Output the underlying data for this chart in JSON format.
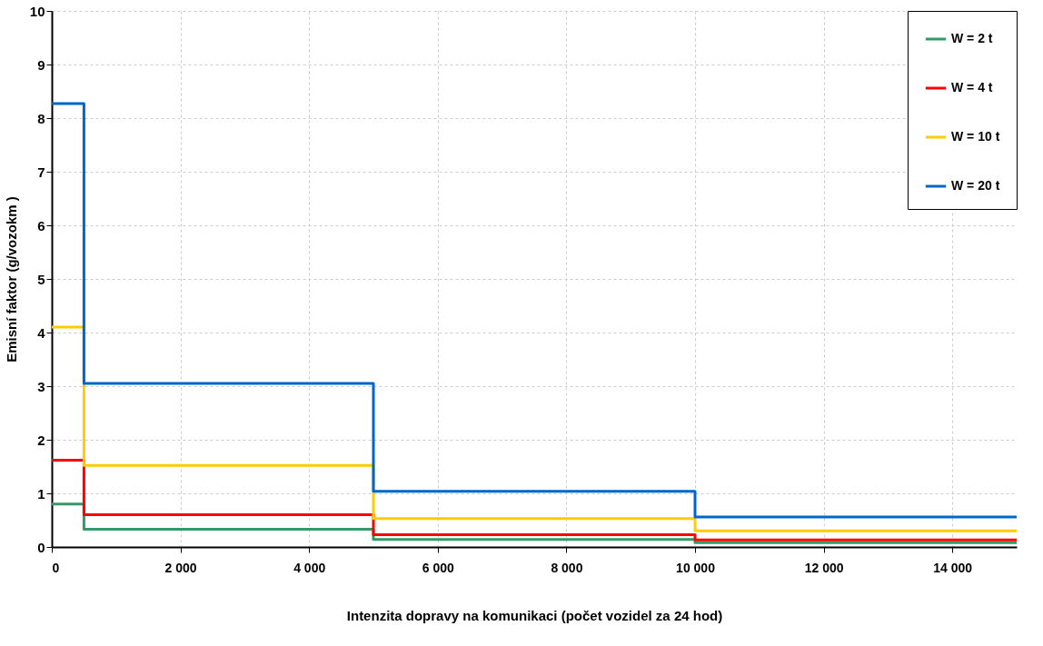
{
  "chart_data": {
    "type": "step",
    "xlabel": "Intenzita dopravy na komunikaci (počet vozidel za 24 hod)",
    "ylabel": "Emisní faktor (g/vozokm )",
    "x": [
      0,
      500,
      5000,
      10000,
      15000
    ],
    "series": [
      {
        "name": "W = 2 t",
        "color": "#339966",
        "values": [
          0.8,
          0.33,
          0.14,
          0.08,
          0.08
        ]
      },
      {
        "name": "W = 4 t",
        "color": "#ff0000",
        "values": [
          1.62,
          0.6,
          0.23,
          0.13,
          0.13
        ]
      },
      {
        "name": "W = 10 t",
        "color": "#ffcc00",
        "values": [
          4.1,
          1.52,
          0.53,
          0.3,
          0.3
        ]
      },
      {
        "name": "W = 20 t",
        "color": "#0066cc",
        "values": [
          8.27,
          3.05,
          1.04,
          0.56,
          0.56
        ]
      }
    ],
    "xlim": [
      0,
      15000
    ],
    "xticks": [
      0,
      {
        "value": 2000,
        "label": "2 000"
      },
      {
        "value": 4000,
        "label": "4 000"
      },
      {
        "value": 6000,
        "label": "6 000"
      },
      {
        "value": 8000,
        "label": "8 000"
      },
      {
        "value": 10000,
        "label": "10 000"
      },
      {
        "value": 12000,
        "label": "12 000"
      },
      {
        "value": 14000,
        "label": "14 000"
      }
    ],
    "ylim": [
      0,
      10
    ],
    "yticks": [
      0,
      1,
      2,
      3,
      4,
      5,
      6,
      7,
      8,
      9,
      10
    ],
    "grid": true,
    "legend": "top right",
    "line_style": "solid",
    "marker": "none"
  }
}
